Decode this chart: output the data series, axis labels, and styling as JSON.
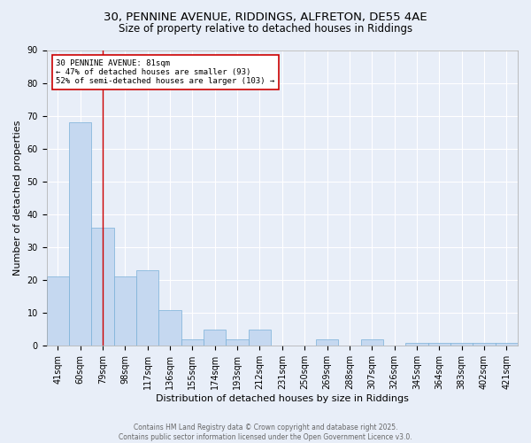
{
  "title_line1": "30, PENNINE AVENUE, RIDDINGS, ALFRETON, DE55 4AE",
  "title_line2": "Size of property relative to detached houses in Riddings",
  "xlabel": "Distribution of detached houses by size in Riddings",
  "ylabel": "Number of detached properties",
  "categories": [
    "41sqm",
    "60sqm",
    "79sqm",
    "98sqm",
    "117sqm",
    "136sqm",
    "155sqm",
    "174sqm",
    "193sqm",
    "212sqm",
    "231sqm",
    "250sqm",
    "269sqm",
    "288sqm",
    "307sqm",
    "326sqm",
    "345sqm",
    "364sqm",
    "383sqm",
    "402sqm",
    "421sqm"
  ],
  "values": [
    21,
    68,
    36,
    21,
    23,
    11,
    2,
    5,
    2,
    5,
    0,
    0,
    2,
    0,
    2,
    0,
    1,
    1,
    1,
    1,
    1
  ],
  "bar_color": "#c5d8f0",
  "bar_edge_color": "#7ab0d8",
  "ylim": [
    0,
    90
  ],
  "yticks": [
    0,
    10,
    20,
    30,
    40,
    50,
    60,
    70,
    80,
    90
  ],
  "vline_x_index": 2.0,
  "vline_color": "#cc0000",
  "annotation_text": "30 PENNINE AVENUE: 81sqm\n← 47% of detached houses are smaller (93)\n52% of semi-detached houses are larger (103) →",
  "annotation_box_color": "#ffffff",
  "annotation_box_edge_color": "#cc0000",
  "footer_line1": "Contains HM Land Registry data © Crown copyright and database right 2025.",
  "footer_line2": "Contains public sector information licensed under the Open Government Licence v3.0.",
  "background_color": "#e8eef8",
  "plot_bg_color": "#e8eef8",
  "grid_color": "#ffffff",
  "title_fontsize": 9.5,
  "subtitle_fontsize": 8.5,
  "axis_label_fontsize": 8,
  "tick_fontsize": 7,
  "annotation_fontsize": 6.5,
  "footer_fontsize": 5.5
}
